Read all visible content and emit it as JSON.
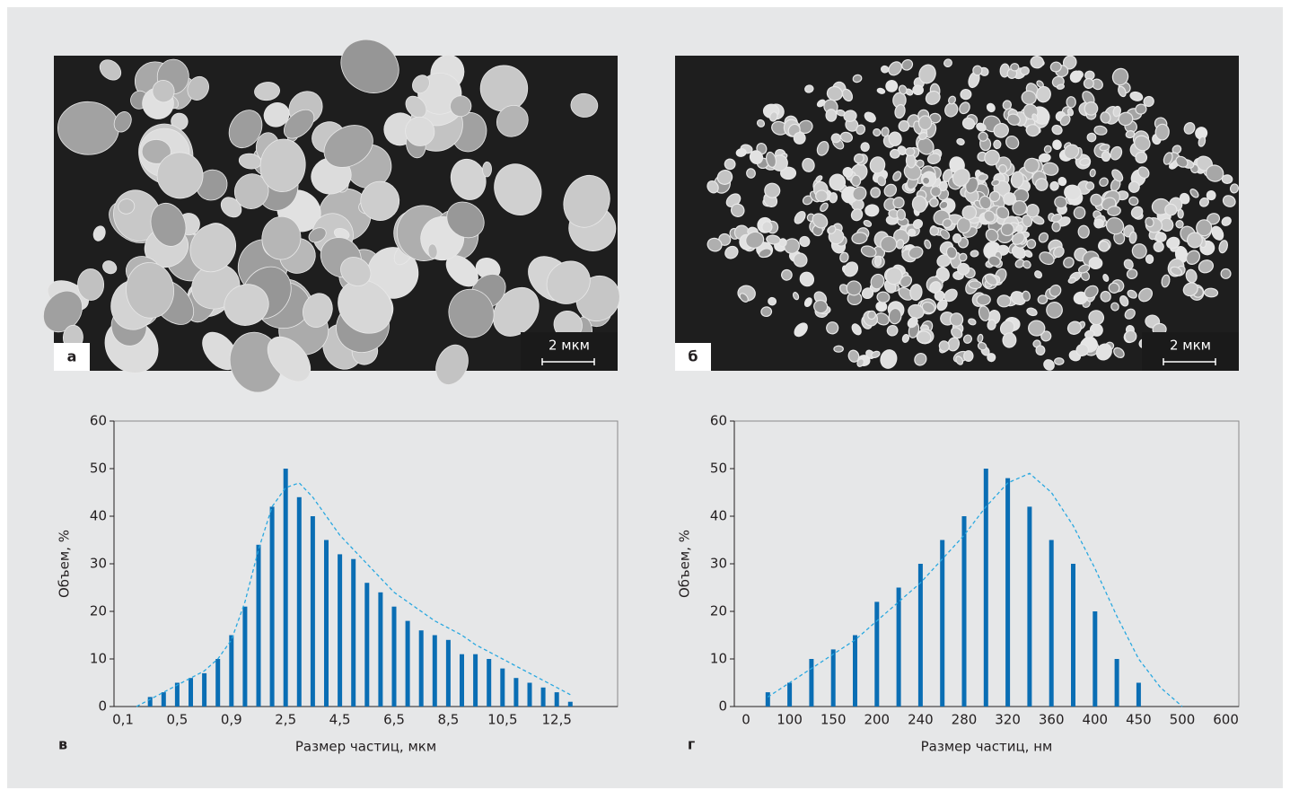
{
  "figure": {
    "panels": [
      {
        "panel_label": "а",
        "scale": "2 мкм"
      },
      {
        "panel_label": "б",
        "scale": "2 мкм"
      }
    ]
  },
  "chart_data": [
    {
      "type": "bar",
      "panel_label": "в",
      "xlabel": "Размер частиц, мкм",
      "ylabel": "Объем, %",
      "categories": [
        "0,1",
        null,
        null,
        null,
        "0,5",
        null,
        null,
        null,
        "0,9",
        null,
        null,
        null,
        "2,5",
        null,
        null,
        null,
        "4,5",
        null,
        null,
        null,
        "6,5",
        null,
        null,
        null,
        "8,5",
        null,
        null,
        null,
        "10,5",
        null,
        null,
        null,
        "12,5",
        null
      ],
      "series": [
        {
          "color": "#0a6eb4",
          "values": [
            null,
            null,
            2,
            3,
            5,
            6,
            7,
            10,
            15,
            21,
            34,
            42,
            50,
            44,
            40,
            35,
            32,
            31,
            26,
            24,
            21,
            18,
            16,
            15,
            14,
            11,
            11,
            10,
            8,
            6,
            5,
            4,
            3,
            1
          ]
        },
        {
          "type": "line",
          "color": "#29a8e0",
          "values": [
            null,
            0,
            1.5,
            3,
            4.5,
            6,
            7.5,
            10,
            14,
            22,
            33,
            42,
            46,
            47,
            44,
            40,
            36,
            33,
            30,
            27,
            24,
            22,
            20,
            18,
            16.5,
            15,
            13,
            11.5,
            10,
            8.5,
            7,
            5.5,
            4,
            2.5
          ]
        }
      ],
      "ylim": [
        0,
        60
      ],
      "yticks": [
        0,
        10,
        20,
        30,
        40,
        50,
        60
      ]
    },
    {
      "type": "bar",
      "panel_label": "г",
      "xlabel": "Размер частиц, нм",
      "ylabel": "Объем, %",
      "categories": [
        "0",
        null,
        "100",
        null,
        "150",
        null,
        "200",
        null,
        "240",
        null,
        "280",
        null,
        "320",
        null,
        "360",
        null,
        "400",
        null,
        "450",
        null,
        "500",
        null,
        "600"
      ],
      "series": [
        {
          "color": "#0a6eb4",
          "values": [
            null,
            3,
            5,
            10,
            12,
            15,
            22,
            25,
            30,
            35,
            40,
            50,
            48,
            42,
            35,
            30,
            20,
            10,
            5,
            null,
            null,
            null,
            null
          ]
        },
        {
          "type": "line",
          "color": "#29a8e0",
          "values": [
            null,
            2,
            5,
            8,
            11,
            14,
            18,
            22,
            26,
            31,
            36,
            42,
            47,
            49,
            45,
            38,
            29,
            19,
            10,
            4,
            0,
            null,
            null
          ]
        }
      ],
      "ylim": [
        0,
        60
      ],
      "yticks": [
        0,
        10,
        20,
        30,
        40,
        50,
        60
      ]
    }
  ]
}
